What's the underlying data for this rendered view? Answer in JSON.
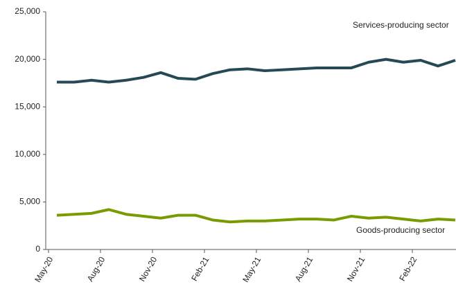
{
  "chart_data": {
    "type": "line",
    "categories": [
      "May-20",
      null,
      null,
      "Aug-20",
      null,
      null,
      "Nov-20",
      null,
      null,
      "Feb-21",
      null,
      null,
      "May-21",
      null,
      null,
      "Aug-21",
      null,
      null,
      "Nov-21",
      null,
      null,
      "Feb-22",
      null,
      null
    ],
    "series": [
      {
        "name": "Services-producing sector",
        "color": "#254a56",
        "values": [
          17600,
          17600,
          17800,
          17600,
          17800,
          18100,
          18600,
          18000,
          17900,
          18500,
          18900,
          19000,
          18800,
          18900,
          19000,
          19100,
          19100,
          19100,
          19700,
          20000,
          19700,
          19900,
          19300,
          19900
        ]
      },
      {
        "name": "Goods-producing sector",
        "color": "#7a9a01",
        "values": [
          3600,
          3700,
          3800,
          4200,
          3700,
          3500,
          3300,
          3600,
          3600,
          3100,
          2900,
          3000,
          3000,
          3100,
          3200,
          3200,
          3100,
          3500,
          3300,
          3400,
          3200,
          3000,
          3200,
          3100
        ]
      }
    ],
    "ylim": [
      0,
      25000
    ],
    "yticks": [
      0,
      {
        "value": 5000,
        "label": "5,000"
      },
      {
        "value": 10000,
        "label": "10,000"
      },
      {
        "value": 15000,
        "label": "15,000"
      },
      {
        "value": 20000,
        "label": "20,000"
      },
      {
        "value": 25000,
        "label": "25,000"
      }
    ],
    "grid": false
  }
}
